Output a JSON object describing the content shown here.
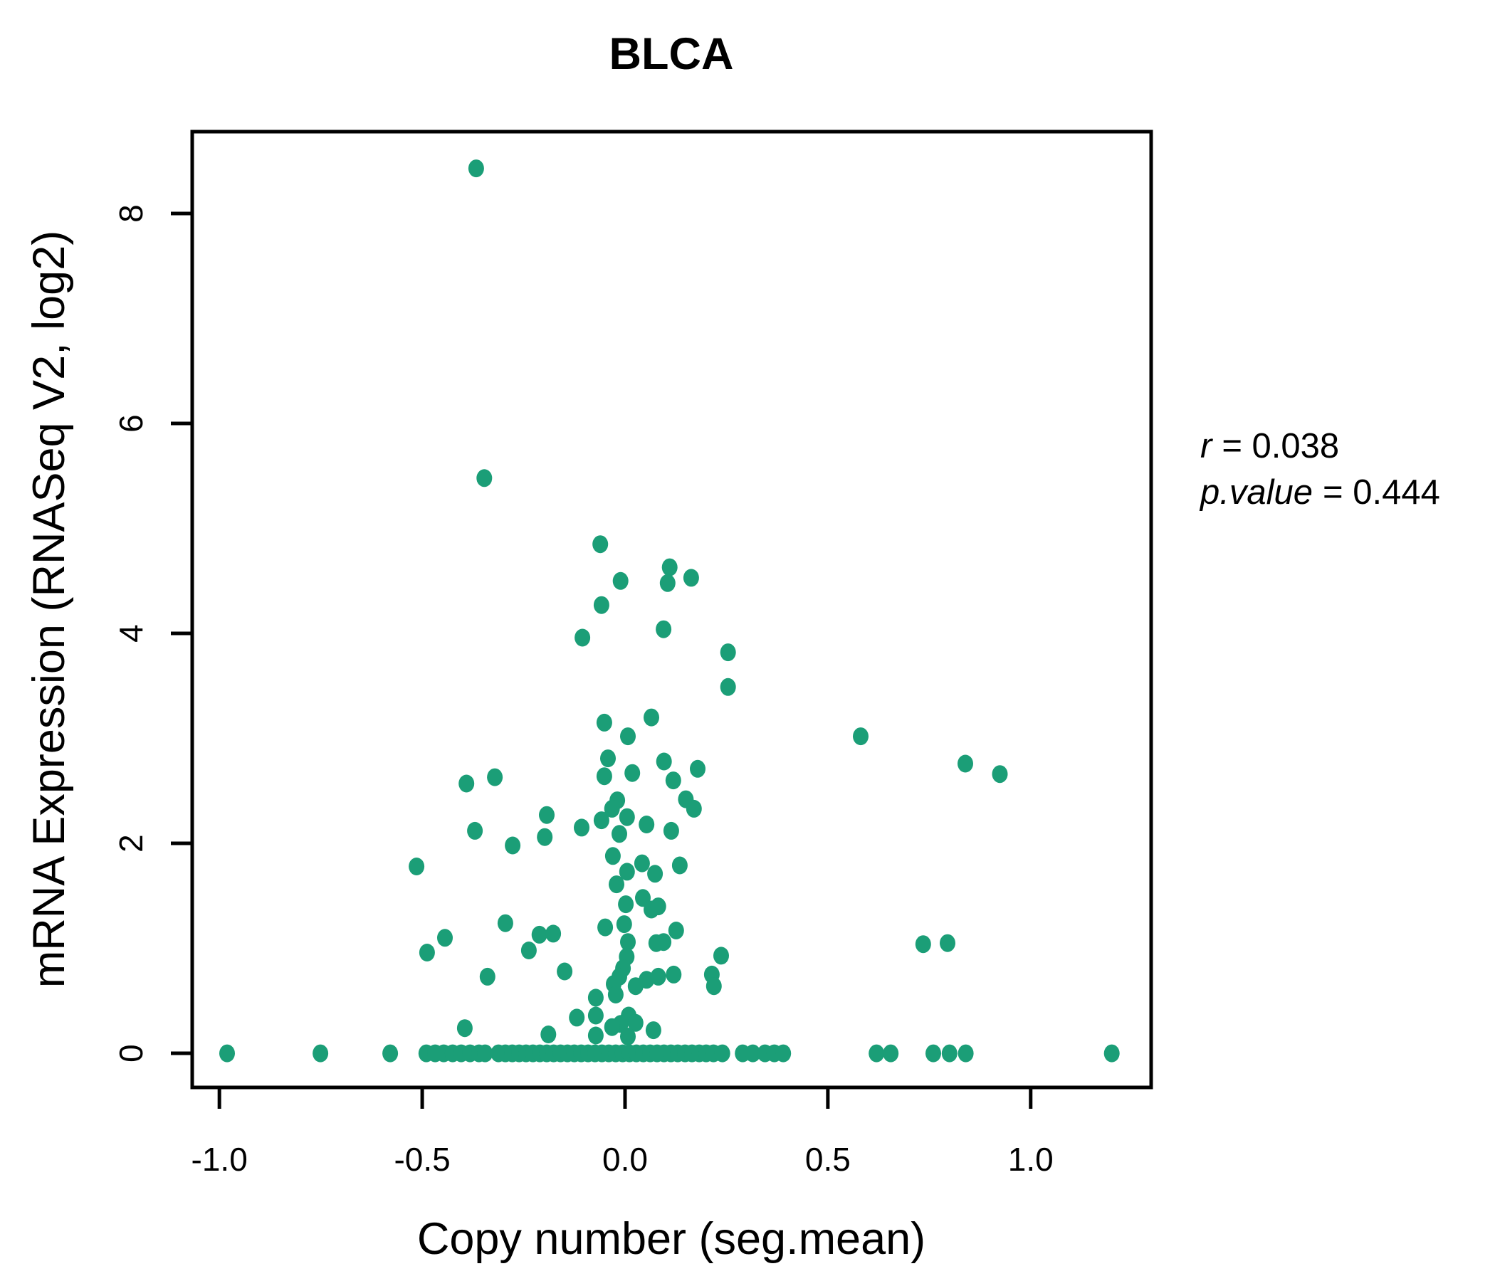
{
  "title": "BLCA",
  "colors": {
    "accent": "#1b9e77",
    "text": "#000000"
  },
  "annotation": {
    "r_label": "r",
    "r_value": "= 0.038",
    "p_label": "p.value",
    "p_value": "= 0.444"
  },
  "chart_data": {
    "type": "scatter",
    "title": "BLCA",
    "xlabel": "Copy number (seg.mean)",
    "ylabel": "mRNA Expression (RNASeq V2, log2)",
    "legend": "none",
    "grid": false,
    "r": 0.038,
    "p_value": 0.444,
    "xlim": [
      -1.067,
      1.297
    ],
    "ylim": [
      -0.325,
      8.78
    ],
    "x_ticks": [
      -1.0,
      -0.5,
      0.0,
      0.5,
      1.0
    ],
    "x_tick_labels": [
      "-1.0",
      "-0.5",
      "0.0",
      "0.5",
      "1.0"
    ],
    "y_ticks": [
      0,
      2,
      4,
      6,
      8
    ],
    "y_tick_labels": [
      "0",
      "2",
      "4",
      "6",
      "8"
    ],
    "points": [
      [
        -0.367,
        8.43
      ],
      [
        -0.347,
        5.48
      ],
      [
        -0.061,
        4.85
      ],
      [
        0.11,
        4.63
      ],
      [
        0.105,
        4.48
      ],
      [
        0.163,
        4.53
      ],
      [
        -0.011,
        4.5
      ],
      [
        -0.058,
        4.27
      ],
      [
        -0.105,
        3.96
      ],
      [
        0.095,
        4.04
      ],
      [
        0.254,
        3.82
      ],
      [
        0.254,
        3.49
      ],
      [
        0.065,
        3.2
      ],
      [
        -0.051,
        3.15
      ],
      [
        0.007,
        3.02
      ],
      [
        0.581,
        3.02
      ],
      [
        0.839,
        2.76
      ],
      [
        0.924,
        2.66
      ],
      [
        -0.042,
        2.81
      ],
      [
        0.096,
        2.78
      ],
      [
        -0.051,
        2.64
      ],
      [
        0.018,
        2.67
      ],
      [
        0.119,
        2.6
      ],
      [
        0.179,
        2.71
      ],
      [
        -0.391,
        2.57
      ],
      [
        -0.321,
        2.63
      ],
      [
        -0.193,
        2.27
      ],
      [
        -0.37,
        2.12
      ],
      [
        -0.277,
        1.98
      ],
      [
        -0.198,
        2.06
      ],
      [
        -0.107,
        2.15
      ],
      [
        -0.019,
        2.41
      ],
      [
        -0.032,
        2.33
      ],
      [
        -0.058,
        2.22
      ],
      [
        0.005,
        2.25
      ],
      [
        0.053,
        2.18
      ],
      [
        0.114,
        2.12
      ],
      [
        0.15,
        2.42
      ],
      [
        0.17,
        2.33
      ],
      [
        -0.014,
        2.09
      ],
      [
        -0.03,
        1.88
      ],
      [
        0.042,
        1.81
      ],
      [
        0.005,
        1.73
      ],
      [
        0.074,
        1.71
      ],
      [
        0.135,
        1.79
      ],
      [
        -0.021,
        1.61
      ],
      [
        -0.514,
        1.78
      ],
      [
        0.002,
        1.42
      ],
      [
        0.044,
        1.48
      ],
      [
        0.065,
        1.37
      ],
      [
        0.082,
        1.4
      ],
      [
        -0.002,
        1.23
      ],
      [
        -0.049,
        1.2
      ],
      [
        0.007,
        1.06
      ],
      [
        0.126,
        1.17
      ],
      [
        0.077,
        1.05
      ],
      [
        0.095,
        1.06
      ],
      [
        0.004,
        0.92
      ],
      [
        -0.295,
        1.24
      ],
      [
        -0.444,
        1.1
      ],
      [
        -0.488,
        0.96
      ],
      [
        -0.211,
        1.13
      ],
      [
        -0.177,
        1.14
      ],
      [
        -0.237,
        0.98
      ],
      [
        -0.149,
        0.78
      ],
      [
        -0.339,
        0.73
      ],
      [
        0.735,
        1.04
      ],
      [
        0.795,
        1.05
      ],
      [
        0.237,
        0.93
      ],
      [
        0.12,
        0.75
      ],
      [
        -0.005,
        0.81
      ],
      [
        -0.014,
        0.73
      ],
      [
        0.053,
        0.7
      ],
      [
        0.082,
        0.73
      ],
      [
        0.026,
        0.64
      ],
      [
        -0.028,
        0.66
      ],
      [
        -0.023,
        0.56
      ],
      [
        0.214,
        0.75
      ],
      [
        0.219,
        0.64
      ],
      [
        -0.072,
        0.53
      ],
      [
        0.009,
        0.36
      ],
      [
        0.026,
        0.29
      ],
      [
        -0.011,
        0.28
      ],
      [
        -0.032,
        0.25
      ],
      [
        0.07,
        0.22
      ],
      [
        0.007,
        0.16
      ],
      [
        -0.395,
        0.24
      ],
      [
        -0.189,
        0.18
      ],
      [
        -0.119,
        0.34
      ],
      [
        -0.072,
        0.36
      ],
      [
        -0.072,
        0.17
      ],
      [
        -0.981,
        0
      ],
      [
        -0.751,
        0
      ],
      [
        -0.579,
        0
      ],
      [
        -0.49,
        0
      ],
      [
        -0.468,
        0
      ],
      [
        -0.447,
        0
      ],
      [
        -0.425,
        0
      ],
      [
        -0.404,
        0
      ],
      [
        -0.382,
        0
      ],
      [
        -0.36,
        0
      ],
      [
        -0.345,
        0
      ],
      [
        -0.312,
        0
      ],
      [
        -0.295,
        0
      ],
      [
        -0.278,
        0
      ],
      [
        -0.261,
        0
      ],
      [
        -0.244,
        0
      ],
      [
        -0.227,
        0
      ],
      [
        -0.21,
        0
      ],
      [
        -0.193,
        0
      ],
      [
        -0.176,
        0
      ],
      [
        -0.159,
        0
      ],
      [
        -0.142,
        0
      ],
      [
        -0.125,
        0
      ],
      [
        -0.108,
        0
      ],
      [
        -0.091,
        0
      ],
      [
        -0.074,
        0
      ],
      [
        -0.057,
        0
      ],
      [
        -0.04,
        0
      ],
      [
        -0.023,
        0
      ],
      [
        -0.006,
        0
      ],
      [
        0.011,
        0
      ],
      [
        0.028,
        0
      ],
      [
        0.045,
        0
      ],
      [
        0.062,
        0
      ],
      [
        0.079,
        0
      ],
      [
        0.096,
        0
      ],
      [
        0.113,
        0
      ],
      [
        0.13,
        0
      ],
      [
        0.148,
        0
      ],
      [
        0.165,
        0
      ],
      [
        0.183,
        0
      ],
      [
        0.2,
        0
      ],
      [
        0.218,
        0
      ],
      [
        0.24,
        0
      ],
      [
        0.29,
        0
      ],
      [
        0.315,
        0
      ],
      [
        0.345,
        0
      ],
      [
        0.368,
        0
      ],
      [
        0.39,
        0
      ],
      [
        0.62,
        0
      ],
      [
        0.655,
        0
      ],
      [
        0.76,
        0
      ],
      [
        0.8,
        0
      ],
      [
        0.84,
        0
      ],
      [
        1.2,
        0
      ]
    ]
  }
}
